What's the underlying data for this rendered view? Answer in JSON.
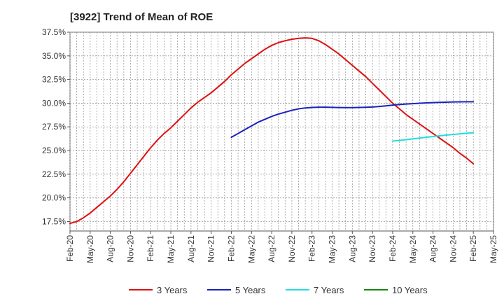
{
  "chart_data": {
    "type": "line",
    "title": "[3922]  Trend of Mean of ROE",
    "xlabel": "",
    "ylabel": "",
    "x_ticks": [
      "Feb-20",
      "May-20",
      "Aug-20",
      "Nov-20",
      "Feb-21",
      "May-21",
      "Aug-21",
      "Nov-21",
      "Feb-22",
      "May-22",
      "Aug-22",
      "Nov-22",
      "Feb-23",
      "May-23",
      "Aug-23",
      "Nov-23",
      "Feb-24",
      "May-24",
      "Aug-24",
      "Nov-24",
      "Feb-25",
      "May-25"
    ],
    "y_ticks": [
      "17.5%",
      "20.0%",
      "22.5%",
      "25.0%",
      "27.5%",
      "30.0%",
      "32.5%",
      "35.0%",
      "37.5%"
    ],
    "ylim": [
      16.5,
      37.5
    ],
    "grid": true,
    "legend_position": "bottom",
    "series": [
      {
        "name": "3 Years",
        "color": "#dd1111",
        "points": [
          [
            "Feb-20",
            17.3
          ],
          [
            "Mar-20",
            17.5
          ],
          [
            "Apr-20",
            17.9
          ],
          [
            "May-20",
            18.4
          ],
          [
            "Jun-20",
            19.0
          ],
          [
            "Jul-20",
            19.6
          ],
          [
            "Aug-20",
            20.2
          ],
          [
            "Sep-20",
            20.9
          ],
          [
            "Oct-20",
            21.7
          ],
          [
            "Nov-20",
            22.6
          ],
          [
            "Dec-20",
            23.5
          ],
          [
            "Jan-21",
            24.4
          ],
          [
            "Feb-21",
            25.3
          ],
          [
            "Mar-21",
            26.1
          ],
          [
            "Apr-21",
            26.8
          ],
          [
            "May-21",
            27.4
          ],
          [
            "Jun-21",
            28.1
          ],
          [
            "Jul-21",
            28.8
          ],
          [
            "Aug-21",
            29.5
          ],
          [
            "Sep-21",
            30.1
          ],
          [
            "Oct-21",
            30.6
          ],
          [
            "Nov-21",
            31.1
          ],
          [
            "Dec-21",
            31.7
          ],
          [
            "Jan-22",
            32.3
          ],
          [
            "Feb-22",
            33.0
          ],
          [
            "Mar-22",
            33.6
          ],
          [
            "Apr-22",
            34.2
          ],
          [
            "May-22",
            34.7
          ],
          [
            "Jun-22",
            35.2
          ],
          [
            "Jul-22",
            35.7
          ],
          [
            "Aug-22",
            36.1
          ],
          [
            "Sep-22",
            36.4
          ],
          [
            "Oct-22",
            36.6
          ],
          [
            "Nov-22",
            36.75
          ],
          [
            "Dec-22",
            36.85
          ],
          [
            "Jan-23",
            36.9
          ],
          [
            "Feb-23",
            36.85
          ],
          [
            "Mar-23",
            36.6
          ],
          [
            "Apr-23",
            36.2
          ],
          [
            "May-23",
            35.7
          ],
          [
            "Jun-23",
            35.2
          ],
          [
            "Jul-23",
            34.6
          ],
          [
            "Aug-23",
            34.0
          ],
          [
            "Sep-23",
            33.4
          ],
          [
            "Oct-23",
            32.8
          ],
          [
            "Nov-23",
            32.1
          ],
          [
            "Dec-23",
            31.4
          ],
          [
            "Jan-24",
            30.7
          ],
          [
            "Feb-24",
            30.0
          ],
          [
            "Mar-24",
            29.4
          ],
          [
            "Apr-24",
            28.8
          ],
          [
            "May-24",
            28.3
          ],
          [
            "Jun-24",
            27.8
          ],
          [
            "Jul-24",
            27.3
          ],
          [
            "Aug-24",
            26.8
          ],
          [
            "Sep-24",
            26.3
          ],
          [
            "Oct-24",
            25.8
          ],
          [
            "Nov-24",
            25.3
          ],
          [
            "Dec-24",
            24.7
          ],
          [
            "Jan-25",
            24.2
          ],
          [
            "Feb-25",
            23.6
          ]
        ]
      },
      {
        "name": "5 Years",
        "color": "#1a22bb",
        "points": [
          [
            "Feb-22",
            26.4
          ],
          [
            "Mar-22",
            26.8
          ],
          [
            "Apr-22",
            27.2
          ],
          [
            "May-22",
            27.6
          ],
          [
            "Jun-22",
            28.0
          ],
          [
            "Jul-22",
            28.3
          ],
          [
            "Aug-22",
            28.6
          ],
          [
            "Sep-22",
            28.85
          ],
          [
            "Oct-22",
            29.05
          ],
          [
            "Nov-22",
            29.25
          ],
          [
            "Dec-22",
            29.4
          ],
          [
            "Jan-23",
            29.5
          ],
          [
            "Feb-23",
            29.55
          ],
          [
            "Mar-23",
            29.58
          ],
          [
            "Apr-23",
            29.58
          ],
          [
            "May-23",
            29.56
          ],
          [
            "Jun-23",
            29.54
          ],
          [
            "Jul-23",
            29.53
          ],
          [
            "Aug-23",
            29.53
          ],
          [
            "Sep-23",
            29.55
          ],
          [
            "Oct-23",
            29.57
          ],
          [
            "Nov-23",
            29.6
          ],
          [
            "Dec-23",
            29.65
          ],
          [
            "Jan-24",
            29.72
          ],
          [
            "Feb-24",
            29.8
          ],
          [
            "Mar-24",
            29.86
          ],
          [
            "Apr-24",
            29.91
          ],
          [
            "May-24",
            29.95
          ],
          [
            "Jun-24",
            29.99
          ],
          [
            "Jul-24",
            30.03
          ],
          [
            "Aug-24",
            30.06
          ],
          [
            "Sep-24",
            30.09
          ],
          [
            "Oct-24",
            30.11
          ],
          [
            "Nov-24",
            30.13
          ],
          [
            "Dec-24",
            30.14
          ],
          [
            "Jan-25",
            30.15
          ],
          [
            "Feb-25",
            30.15
          ]
        ]
      },
      {
        "name": "7 Years",
        "color": "#22dddd",
        "points": [
          [
            "Feb-24",
            26.0
          ],
          [
            "Mar-24",
            26.07
          ],
          [
            "Apr-24",
            26.15
          ],
          [
            "May-24",
            26.23
          ],
          [
            "Jun-24",
            26.32
          ],
          [
            "Jul-24",
            26.4
          ],
          [
            "Aug-24",
            26.48
          ],
          [
            "Sep-24",
            26.56
          ],
          [
            "Oct-24",
            26.63
          ],
          [
            "Nov-24",
            26.7
          ],
          [
            "Dec-24",
            26.76
          ],
          [
            "Jan-25",
            26.82
          ],
          [
            "Feb-25",
            26.88
          ]
        ]
      },
      {
        "name": "10 Years",
        "color": "#118811",
        "points": []
      }
    ]
  }
}
